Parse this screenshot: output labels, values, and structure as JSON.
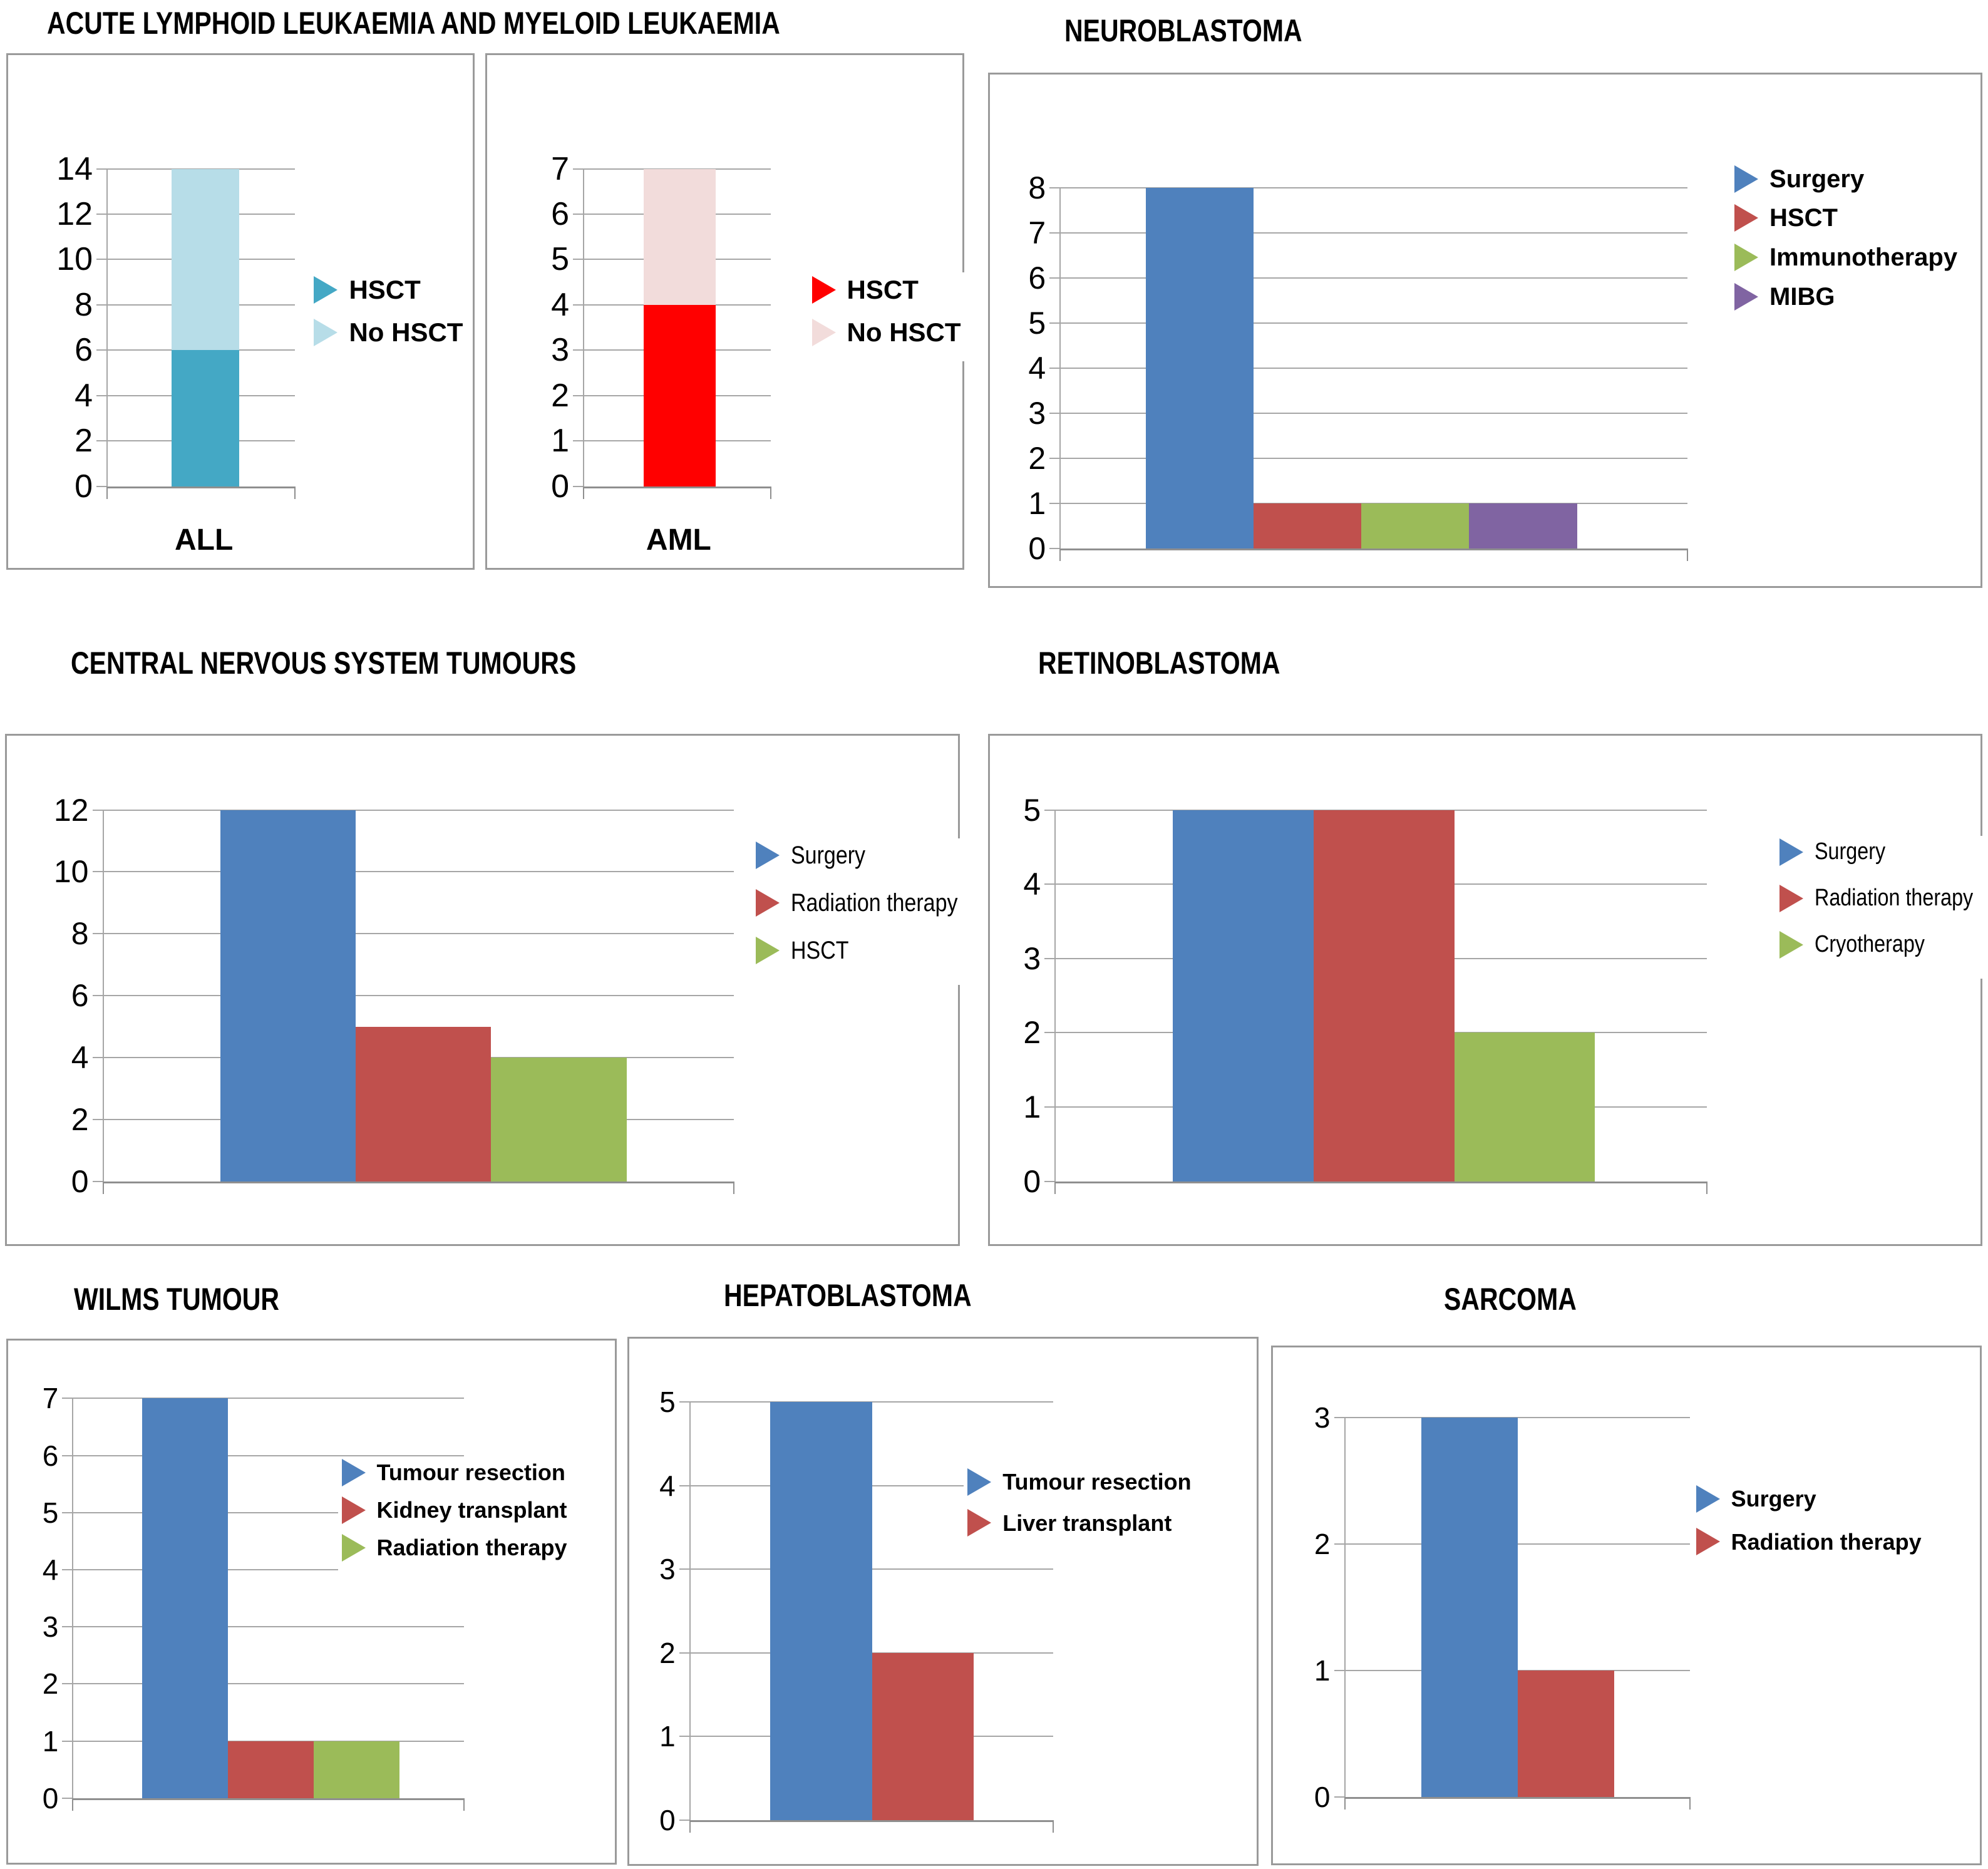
{
  "titles": {
    "leukaemia": "ACUTE LYMPHOID LEUKAEMIA AND MYELOID LEUKAEMIA",
    "neuroblastoma": "NEUROBLASTOMA",
    "cns": "CENTRAL NERVOUS SYSTEM TUMOURS",
    "retinoblastoma": "RETINOBLASTOMA",
    "wilms": "WILMS TUMOUR",
    "hepatoblastoma": "HEPATOBLASTOMA",
    "sarcoma": "SARCOMA"
  },
  "palette": {
    "blue": "#4F81BD",
    "dark_red": "#C0504D",
    "green": "#9BBB59",
    "purple": "#8064A2",
    "teal": "#44A8C5",
    "light_blue": "#B7DDE8",
    "red": "#FF0000",
    "pink": "#F2DCDB",
    "gridline": "#A6A6A6",
    "axis": "#8F8F8F",
    "panel_border": "#9A9A9A"
  },
  "chart_data": [
    {
      "id": "all",
      "group": "leukaemia",
      "type": "bar",
      "stacked": true,
      "categories": [
        "ALL"
      ],
      "series": [
        {
          "name": "HSCT",
          "color": "#44A8C5",
          "values": [
            6
          ]
        },
        {
          "name": "No HSCT",
          "color": "#B7DDE8",
          "values": [
            8
          ]
        }
      ],
      "ylim": [
        0,
        14
      ],
      "ytick_step": 2,
      "grid": true,
      "legend_position": "right",
      "layout": {
        "panel": [
          10,
          85,
          748,
          825
        ],
        "plot": {
          "l": 21,
          "t": 22,
          "r": 61,
          "b": 83.5
        },
        "bars": {
          "gap": 34,
          "w": 36
        },
        "cat_y": 90.5,
        "tickfs": 52,
        "legend": {
          "l": 64.5,
          "t": 42,
          "sp": 8,
          "fs": 42,
          "bold": true
        }
      }
    },
    {
      "id": "aml",
      "group": "leukaemia",
      "type": "bar",
      "stacked": true,
      "categories": [
        "AML"
      ],
      "series": [
        {
          "name": "HSCT",
          "color": "#FF0000",
          "values": [
            4
          ]
        },
        {
          "name": "No HSCT",
          "color": "#F2DCDB",
          "values": [
            3
          ]
        }
      ],
      "ylim": [
        0,
        7
      ],
      "ytick_step": 1,
      "grid": true,
      "legend_position": "right",
      "layout": {
        "panel": [
          775,
          85,
          765,
          825
        ],
        "plot": {
          "l": 20,
          "t": 22,
          "r": 59,
          "b": 83.5
        },
        "bars": {
          "gap": 32,
          "w": 38.5
        },
        "cat_y": 90.5,
        "tickfs": 52,
        "legend": {
          "l": 67,
          "t": 42,
          "sp": 8,
          "fs": 42,
          "bold": true
        }
      }
    },
    {
      "id": "neuroblastoma",
      "group": "neuroblastoma",
      "type": "bar",
      "stacked": false,
      "categories": [],
      "series": [
        {
          "name": "Surgery",
          "color": "#4F81BD",
          "values": [
            8
          ]
        },
        {
          "name": "HSCT",
          "color": "#C0504D",
          "values": [
            1
          ]
        },
        {
          "name": "Immunotherapy",
          "color": "#9BBB59",
          "values": [
            1
          ]
        },
        {
          "name": "MIBG",
          "color": "#8064A2",
          "values": [
            1
          ]
        }
      ],
      "ylim": [
        0,
        8
      ],
      "ytick_step": 1,
      "grid": true,
      "legend_position": "right",
      "layout": {
        "panel": [
          1578,
          116,
          1588,
          823
        ],
        "plot": {
          "l": 7,
          "t": 22,
          "r": 70,
          "b": 92
        },
        "bars": {
          "gap": 13.6,
          "w": 17.2
        },
        "tickfs": 50,
        "legend": {
          "l": 74.5,
          "t": 17,
          "sp": 7.6,
          "fs": 40,
          "bold": true
        }
      }
    },
    {
      "id": "cns",
      "group": "cns",
      "type": "bar",
      "stacked": false,
      "categories": [],
      "series": [
        {
          "name": "Surgery",
          "color": "#4F81BD",
          "values": [
            12
          ]
        },
        {
          "name": "Radiation therapy",
          "color": "#C0504D",
          "values": [
            5
          ]
        },
        {
          "name": "HSCT",
          "color": "#9BBB59",
          "values": [
            4
          ]
        }
      ],
      "ylim": [
        0,
        12
      ],
      "ytick_step": 2,
      "grid": true,
      "legend_position": "right",
      "layout": {
        "panel": [
          8,
          1172,
          1525,
          818
        ],
        "plot": {
          "l": 10,
          "t": 14.5,
          "r": 76,
          "b": 87
        },
        "bars": {
          "gap": 18.5,
          "w": 21.5
        },
        "tickfs": 50,
        "legend": {
          "l": 78,
          "t": 20,
          "sp": 9.3,
          "fs": 40,
          "bold": false,
          "narrow": true
        }
      }
    },
    {
      "id": "retinoblastoma",
      "group": "retinoblastoma",
      "type": "bar",
      "stacked": false,
      "categories": [],
      "series": [
        {
          "name": "Surgery",
          "color": "#4F81BD",
          "values": [
            5
          ]
        },
        {
          "name": "Radiation therapy",
          "color": "#C0504D",
          "values": [
            5
          ]
        },
        {
          "name": "Cryotherapy",
          "color": "#9BBB59",
          "values": [
            2
          ]
        }
      ],
      "ylim": [
        0,
        5
      ],
      "ytick_step": 1,
      "grid": true,
      "legend_position": "right",
      "layout": {
        "panel": [
          1578,
          1172,
          1588,
          818
        ],
        "plot": {
          "l": 6.5,
          "t": 14.5,
          "r": 72,
          "b": 87
        },
        "bars": {
          "gap": 18,
          "w": 21.6
        },
        "tickfs": 50,
        "legend": {
          "l": 79,
          "t": 19.5,
          "sp": 9.3,
          "fs": 38,
          "bold": false,
          "narrow": true
        }
      }
    },
    {
      "id": "wilms",
      "group": "wilms",
      "type": "bar",
      "stacked": false,
      "categories": [],
      "series": [
        {
          "name": "Tumour resection",
          "color": "#4F81BD",
          "values": [
            7
          ]
        },
        {
          "name": "Kidney transplant",
          "color": "#C0504D",
          "values": [
            1
          ]
        },
        {
          "name": "Radiation therapy",
          "color": "#9BBB59",
          "values": [
            1
          ]
        }
      ],
      "ylim": [
        0,
        7
      ],
      "ytick_step": 1,
      "grid": true,
      "legend_position": "right-overlap",
      "layout": {
        "panel": [
          10,
          2138,
          975,
          840
        ],
        "plot": {
          "l": 10.5,
          "t": 11,
          "r": 74.5,
          "b": 87
        },
        "bars": {
          "gap": 17.5,
          "w": 22
        },
        "tickfs": 46,
        "legend": {
          "l": 54,
          "t": 22,
          "sp": 7.4,
          "fs": 36,
          "bold": true
        }
      }
    },
    {
      "id": "hepatoblastoma",
      "group": "hepatoblastoma",
      "type": "bar",
      "stacked": false,
      "categories": [],
      "series": [
        {
          "name": "Tumour resection",
          "color": "#4F81BD",
          "values": [
            5
          ]
        },
        {
          "name": "Liver transplant",
          "color": "#C0504D",
          "values": [
            2
          ]
        }
      ],
      "ylim": [
        0,
        5
      ],
      "ytick_step": 1,
      "grid": true,
      "legend_position": "right-overlap",
      "layout": {
        "panel": [
          1002,
          2135,
          1008,
          845
        ],
        "plot": {
          "l": 9.5,
          "t": 12,
          "r": 67,
          "b": 91
        },
        "bars": {
          "gap": 22,
          "w": 28
        },
        "tickfs": 46,
        "legend": {
          "l": 53,
          "t": 24,
          "sp": 8,
          "fs": 36,
          "bold": true
        }
      }
    },
    {
      "id": "sarcoma",
      "group": "sarcoma",
      "type": "bar",
      "stacked": false,
      "categories": [],
      "series": [
        {
          "name": "Surgery",
          "color": "#4F81BD",
          "values": [
            3
          ]
        },
        {
          "name": "Radiation therapy",
          "color": "#C0504D",
          "values": [
            1
          ]
        }
      ],
      "ylim": [
        0,
        3
      ],
      "ytick_step": 1,
      "grid": true,
      "legend_position": "right",
      "layout": {
        "panel": [
          2030,
          2149,
          1135,
          830
        ],
        "plot": {
          "l": 10,
          "t": 13.5,
          "r": 58.5,
          "b": 86.5
        },
        "bars": {
          "gap": 22,
          "w": 28
        },
        "tickfs": 46,
        "legend": {
          "l": 59,
          "t": 26,
          "sp": 8.5,
          "fs": 36,
          "bold": true
        }
      }
    }
  ]
}
